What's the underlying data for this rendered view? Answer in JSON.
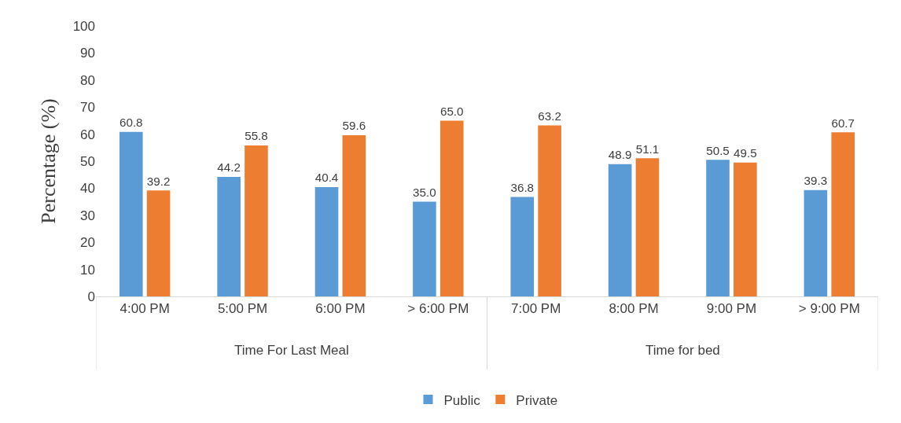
{
  "chart_data": {
    "type": "bar",
    "ylabel": "Percentage (%)",
    "categories": [
      "4:00 PM",
      "5:00 PM",
      "6:00 PM",
      "> 6:00 PM",
      "7:00 PM",
      "8:00 PM",
      "9:00 PM",
      "> 9:00 PM"
    ],
    "series": [
      {
        "name": "Public",
        "color": "#5b9bd5",
        "values": [
          60.8,
          44.2,
          40.4,
          35,
          36.8,
          48.9,
          50.5,
          39.3
        ],
        "value_labels": [
          "60.8",
          "44.2",
          "40.4",
          "35.0",
          "36.8",
          "48.9",
          "50.5",
          "39.3"
        ]
      },
      {
        "name": "Private",
        "color": "#ed7d31",
        "values": [
          39.2,
          55.8,
          59.6,
          65,
          63.2,
          51.1,
          49.5,
          60.7
        ],
        "value_labels": [
          "39.2",
          "55.8",
          "59.6",
          "65.0",
          "63.2",
          "51.1",
          "49.5",
          "60.7"
        ]
      }
    ],
    "ylim": [
      0,
      100
    ],
    "yticks": [
      0,
      10,
      20,
      30,
      40,
      50,
      60,
      70,
      80,
      90,
      100
    ],
    "legend": "bottom",
    "grid": false,
    "annotations": [
      "Time For Last Meal",
      "Time for bed"
    ]
  }
}
